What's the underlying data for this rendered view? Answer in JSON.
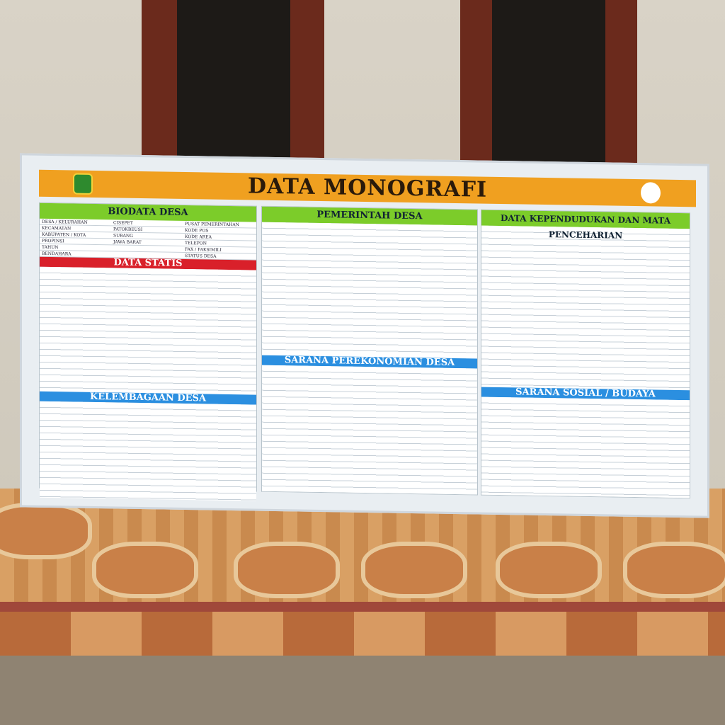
{
  "board": {
    "title": "DATA MONOGRAFI",
    "colors": {
      "title_bar": "#f0a020",
      "section_green": "#7ccc2a",
      "section_red": "#d9202a",
      "section_blue": "#2b8fe0"
    },
    "sections": {
      "biodata": {
        "title": "BIODATA DESA",
        "rows": [
          {
            "left": "DESA / KELURAHAN",
            "value": "CISEPET",
            "right": "PUSAT PEMERINTAHAN"
          },
          {
            "left": "KECAMATAN",
            "value": "PATOKBEUSI",
            "right": "KODE POS"
          },
          {
            "left": "KABUPATEN / KOTA",
            "value": "SUBANG",
            "right": "KODE AREA"
          },
          {
            "left": "PROPINSI",
            "value": "JAWA BARAT",
            "right": "TELEPON"
          },
          {
            "left": "TAHUN",
            "value": "",
            "right": "FAX / FAKSIMILI"
          },
          {
            "left": "BENDAHARA",
            "value": "",
            "right": "STATUS DESA"
          }
        ]
      },
      "data_statis": {
        "title": "DATA STATIS"
      },
      "kelembagaan": {
        "title": "KELEMBAGAAN DESA"
      },
      "pemerintah": {
        "title": "PEMERINTAH DESA"
      },
      "sarana_ekonomi": {
        "title": "SARANA PEREKONOMIAN DESA"
      },
      "kependudukan": {
        "title": "DATA KEPENDUDUKAN DAN MATA PENCEHARIAN"
      },
      "sarana_sosial": {
        "title": "SARANA SOSIAL / BUDAYA"
      }
    }
  }
}
